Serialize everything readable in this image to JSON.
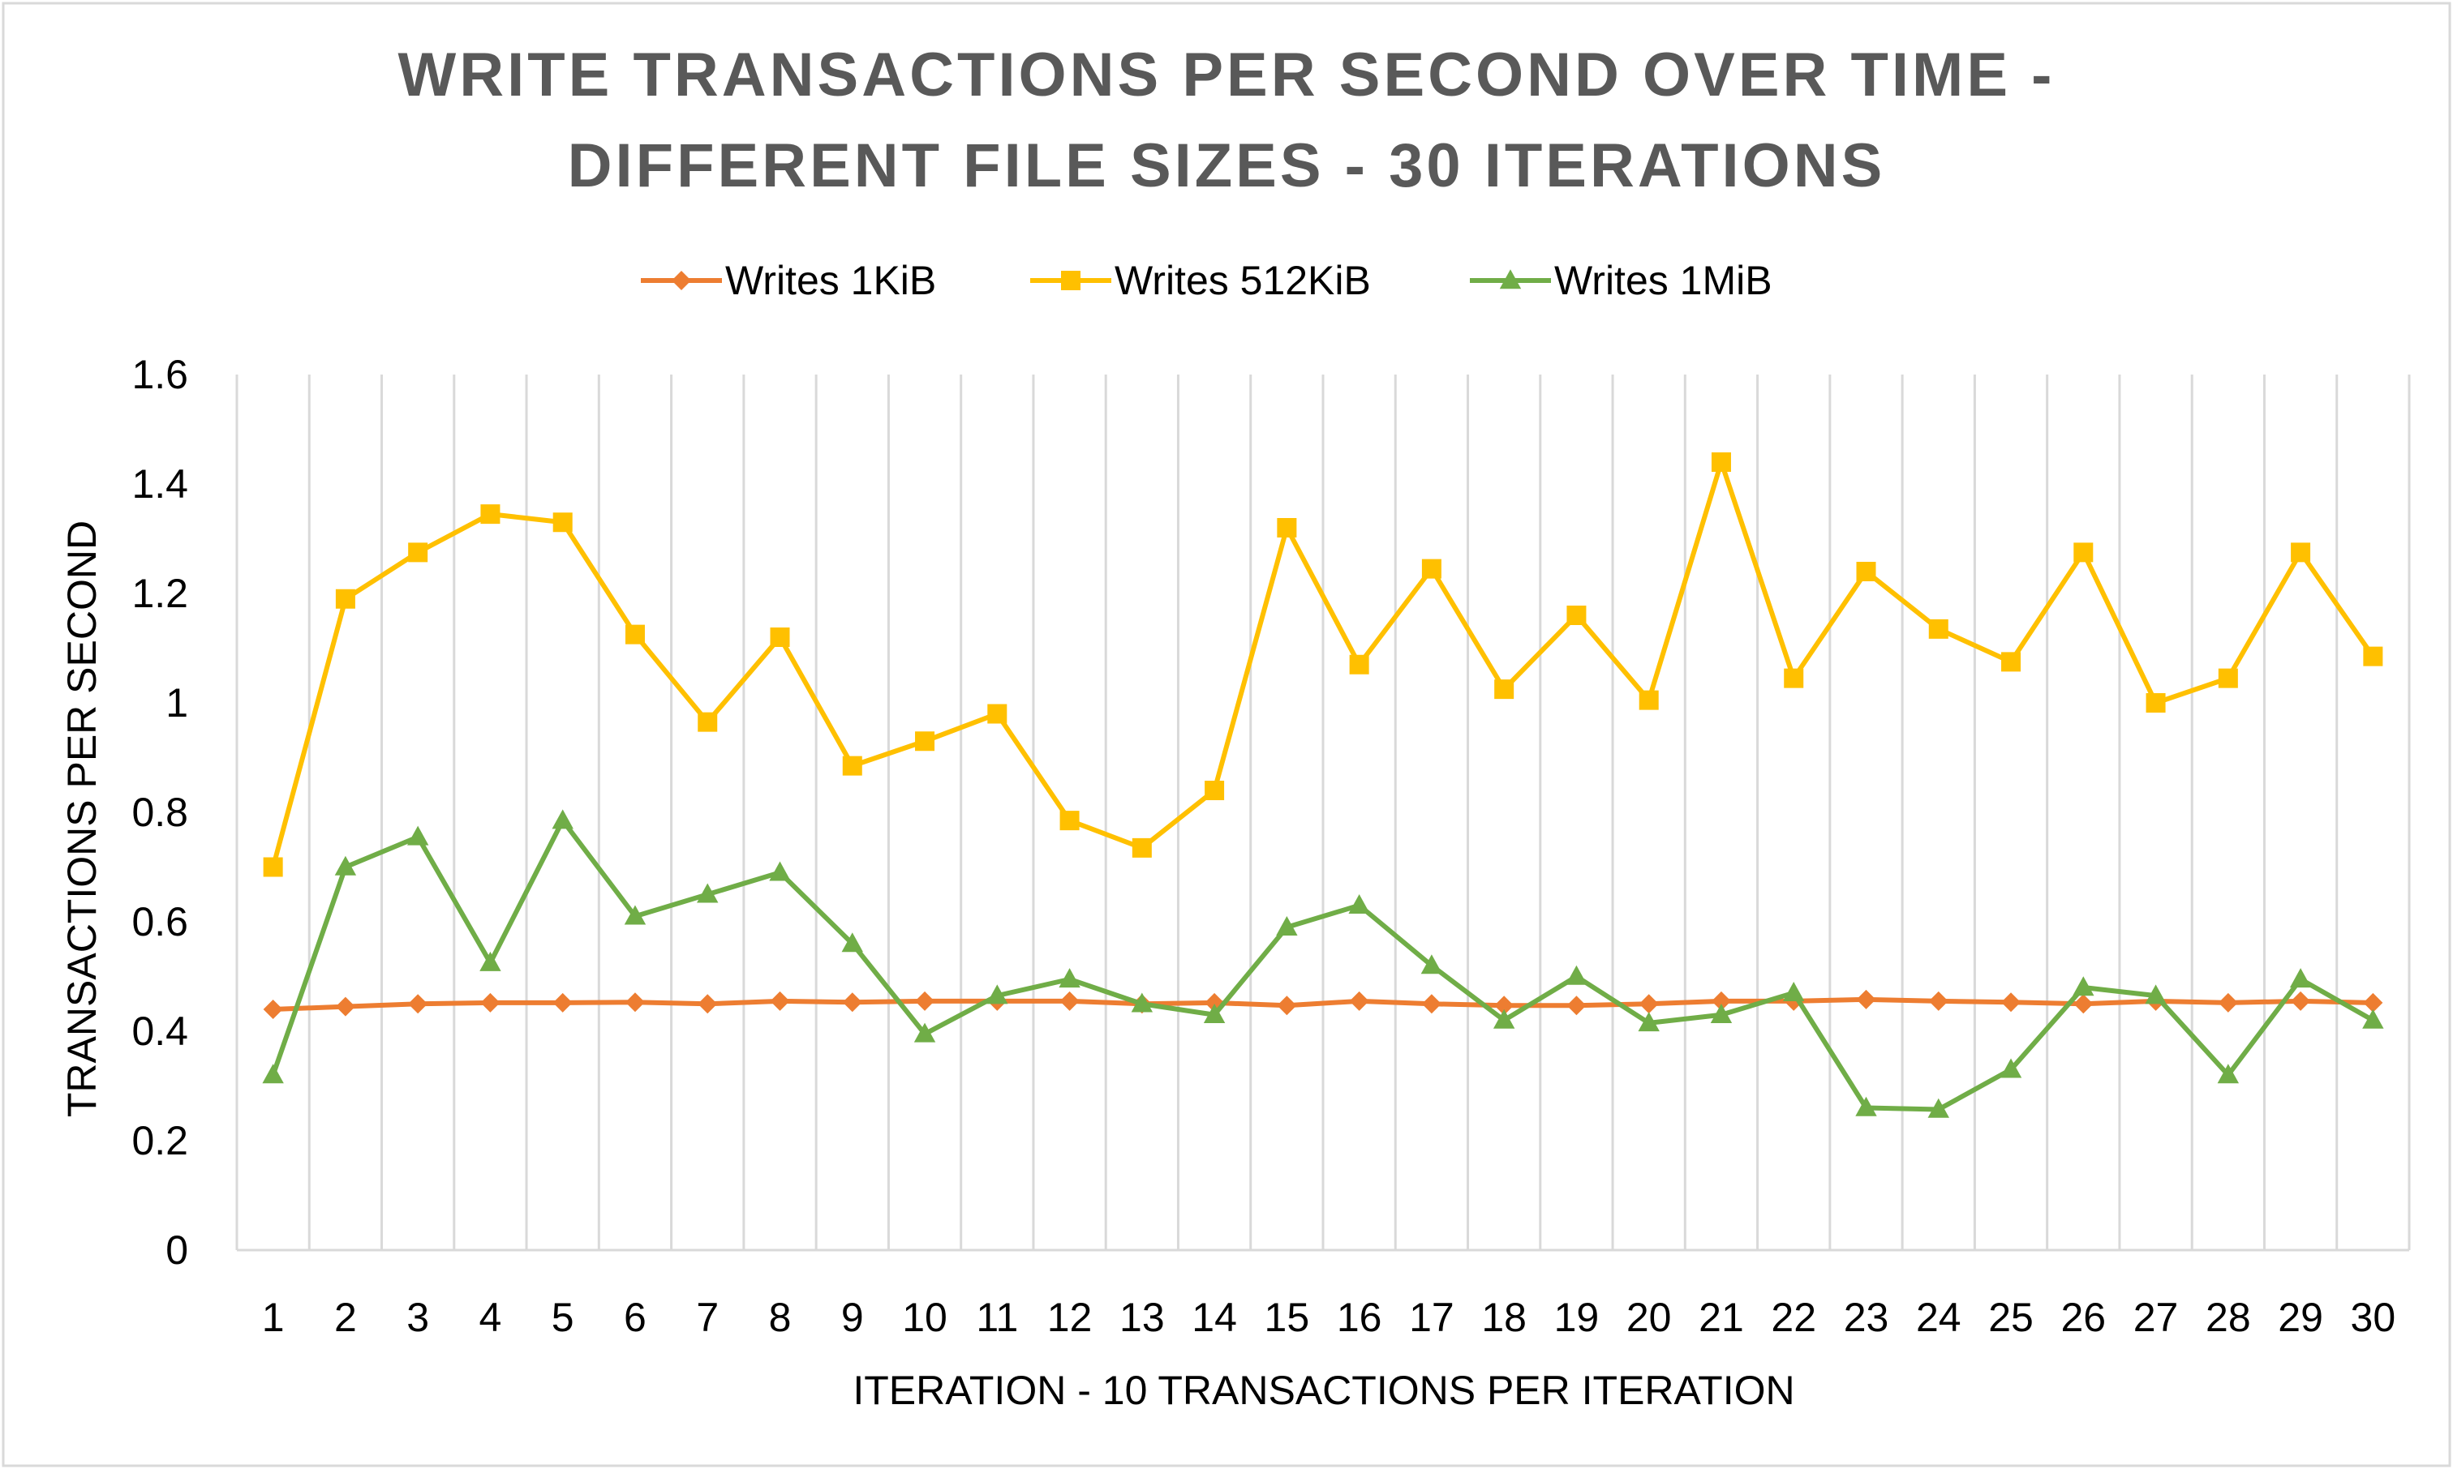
{
  "chart_data": {
    "type": "line",
    "title_lines": [
      "WRITE TRANSACTIONS PER SECOND OVER TIME -",
      "DIFFERENT FILE SIZES - 30 ITERATIONS"
    ],
    "xlabel": "ITERATION - 10 TRANSACTIONS PER ITERATION",
    "ylabel": "TRANSACTIONS PER SECOND",
    "categories": [
      "1",
      "2",
      "3",
      "4",
      "5",
      "6",
      "7",
      "8",
      "9",
      "10",
      "11",
      "12",
      "13",
      "14",
      "15",
      "16",
      "17",
      "18",
      "19",
      "20",
      "21",
      "22",
      "23",
      "24",
      "25",
      "26",
      "27",
      "28",
      "29",
      "30"
    ],
    "ylim": [
      0,
      1.6
    ],
    "yticks": [
      "0",
      "0.2",
      "0.4",
      "0.6",
      "0.8",
      "1",
      "1.2",
      "1.4",
      "1.6"
    ],
    "grid": "vertical",
    "legend_position": "top",
    "series": [
      {
        "name": "Writes 1KiB",
        "color": "#ED7D31",
        "marker": "diamond",
        "values": [
          0.44,
          0.445,
          0.45,
          0.452,
          0.452,
          0.453,
          0.45,
          0.455,
          0.453,
          0.455,
          0.455,
          0.455,
          0.45,
          0.452,
          0.447,
          0.455,
          0.45,
          0.447,
          0.447,
          0.45,
          0.455,
          0.455,
          0.458,
          0.455,
          0.453,
          0.45,
          0.455,
          0.452,
          0.455,
          0.452
        ]
      },
      {
        "name": "Writes 512KiB",
        "color": "#FFC000",
        "marker": "square",
        "values": [
          0.7,
          1.19,
          1.275,
          1.345,
          1.33,
          1.125,
          0.965,
          1.12,
          0.885,
          0.93,
          0.98,
          0.785,
          0.735,
          0.84,
          1.32,
          1.07,
          1.245,
          1.025,
          1.16,
          1.005,
          1.44,
          1.045,
          1.24,
          1.135,
          1.075,
          1.275,
          1.0,
          1.045,
          1.275,
          1.085
        ]
      },
      {
        "name": "Writes 1MiB",
        "color": "#70AD47",
        "marker": "triangle",
        "values": [
          0.32,
          0.7,
          0.755,
          0.525,
          0.785,
          0.61,
          0.65,
          0.69,
          0.56,
          0.395,
          0.465,
          0.495,
          0.45,
          0.43,
          0.59,
          0.63,
          0.52,
          0.42,
          0.5,
          0.415,
          0.43,
          0.47,
          0.26,
          0.257,
          0.33,
          0.48,
          0.465,
          0.32,
          0.495,
          0.42
        ]
      }
    ]
  }
}
